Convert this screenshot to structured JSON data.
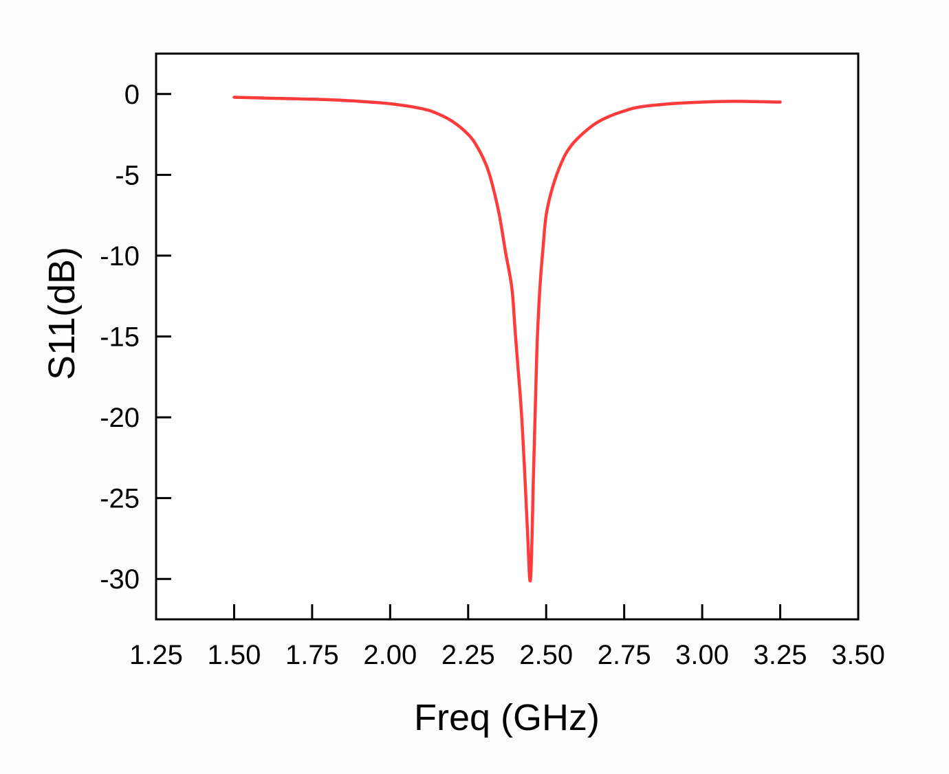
{
  "chart_data": {
    "type": "line",
    "title": "",
    "xlabel": "Freq (GHz)",
    "ylabel": "S11(dB)",
    "xlim": [
      1.25,
      3.5
    ],
    "ylim": [
      -32.5,
      2.5
    ],
    "xticks": [
      "1.25",
      "1.50",
      "1.75",
      "2.00",
      "2.25",
      "2.50",
      "2.75",
      "3.00",
      "3.25",
      "3.50"
    ],
    "yticks": [
      "0",
      "-5",
      "-10",
      "-15",
      "-20",
      "-25",
      "-30"
    ],
    "grid": false,
    "series": [
      {
        "color": "#ff3b3b",
        "x": [
          1.5,
          1.6,
          1.7,
          1.8,
          1.9,
          2.0,
          2.1,
          2.15,
          2.2,
          2.25,
          2.28,
          2.31,
          2.33,
          2.35,
          2.37,
          2.39,
          2.4,
          2.41,
          2.42,
          2.43,
          2.44,
          2.45,
          2.46,
          2.47,
          2.48,
          2.49,
          2.5,
          2.52,
          2.55,
          2.58,
          2.62,
          2.66,
          2.7,
          2.75,
          2.8,
          2.9,
          3.0,
          3.1,
          3.25
        ],
        "y": [
          -0.2,
          -0.25,
          -0.3,
          -0.35,
          -0.45,
          -0.6,
          -0.9,
          -1.2,
          -1.7,
          -2.5,
          -3.3,
          -4.5,
          -5.8,
          -7.5,
          -9.8,
          -12.0,
          -14.5,
          -17.0,
          -19.5,
          -23.0,
          -27.0,
          -30.0,
          -23.0,
          -16.0,
          -12.0,
          -9.5,
          -7.5,
          -5.8,
          -4.2,
          -3.2,
          -2.4,
          -1.8,
          -1.4,
          -1.05,
          -0.8,
          -0.6,
          -0.5,
          -0.45,
          -0.5
        ]
      }
    ]
  }
}
